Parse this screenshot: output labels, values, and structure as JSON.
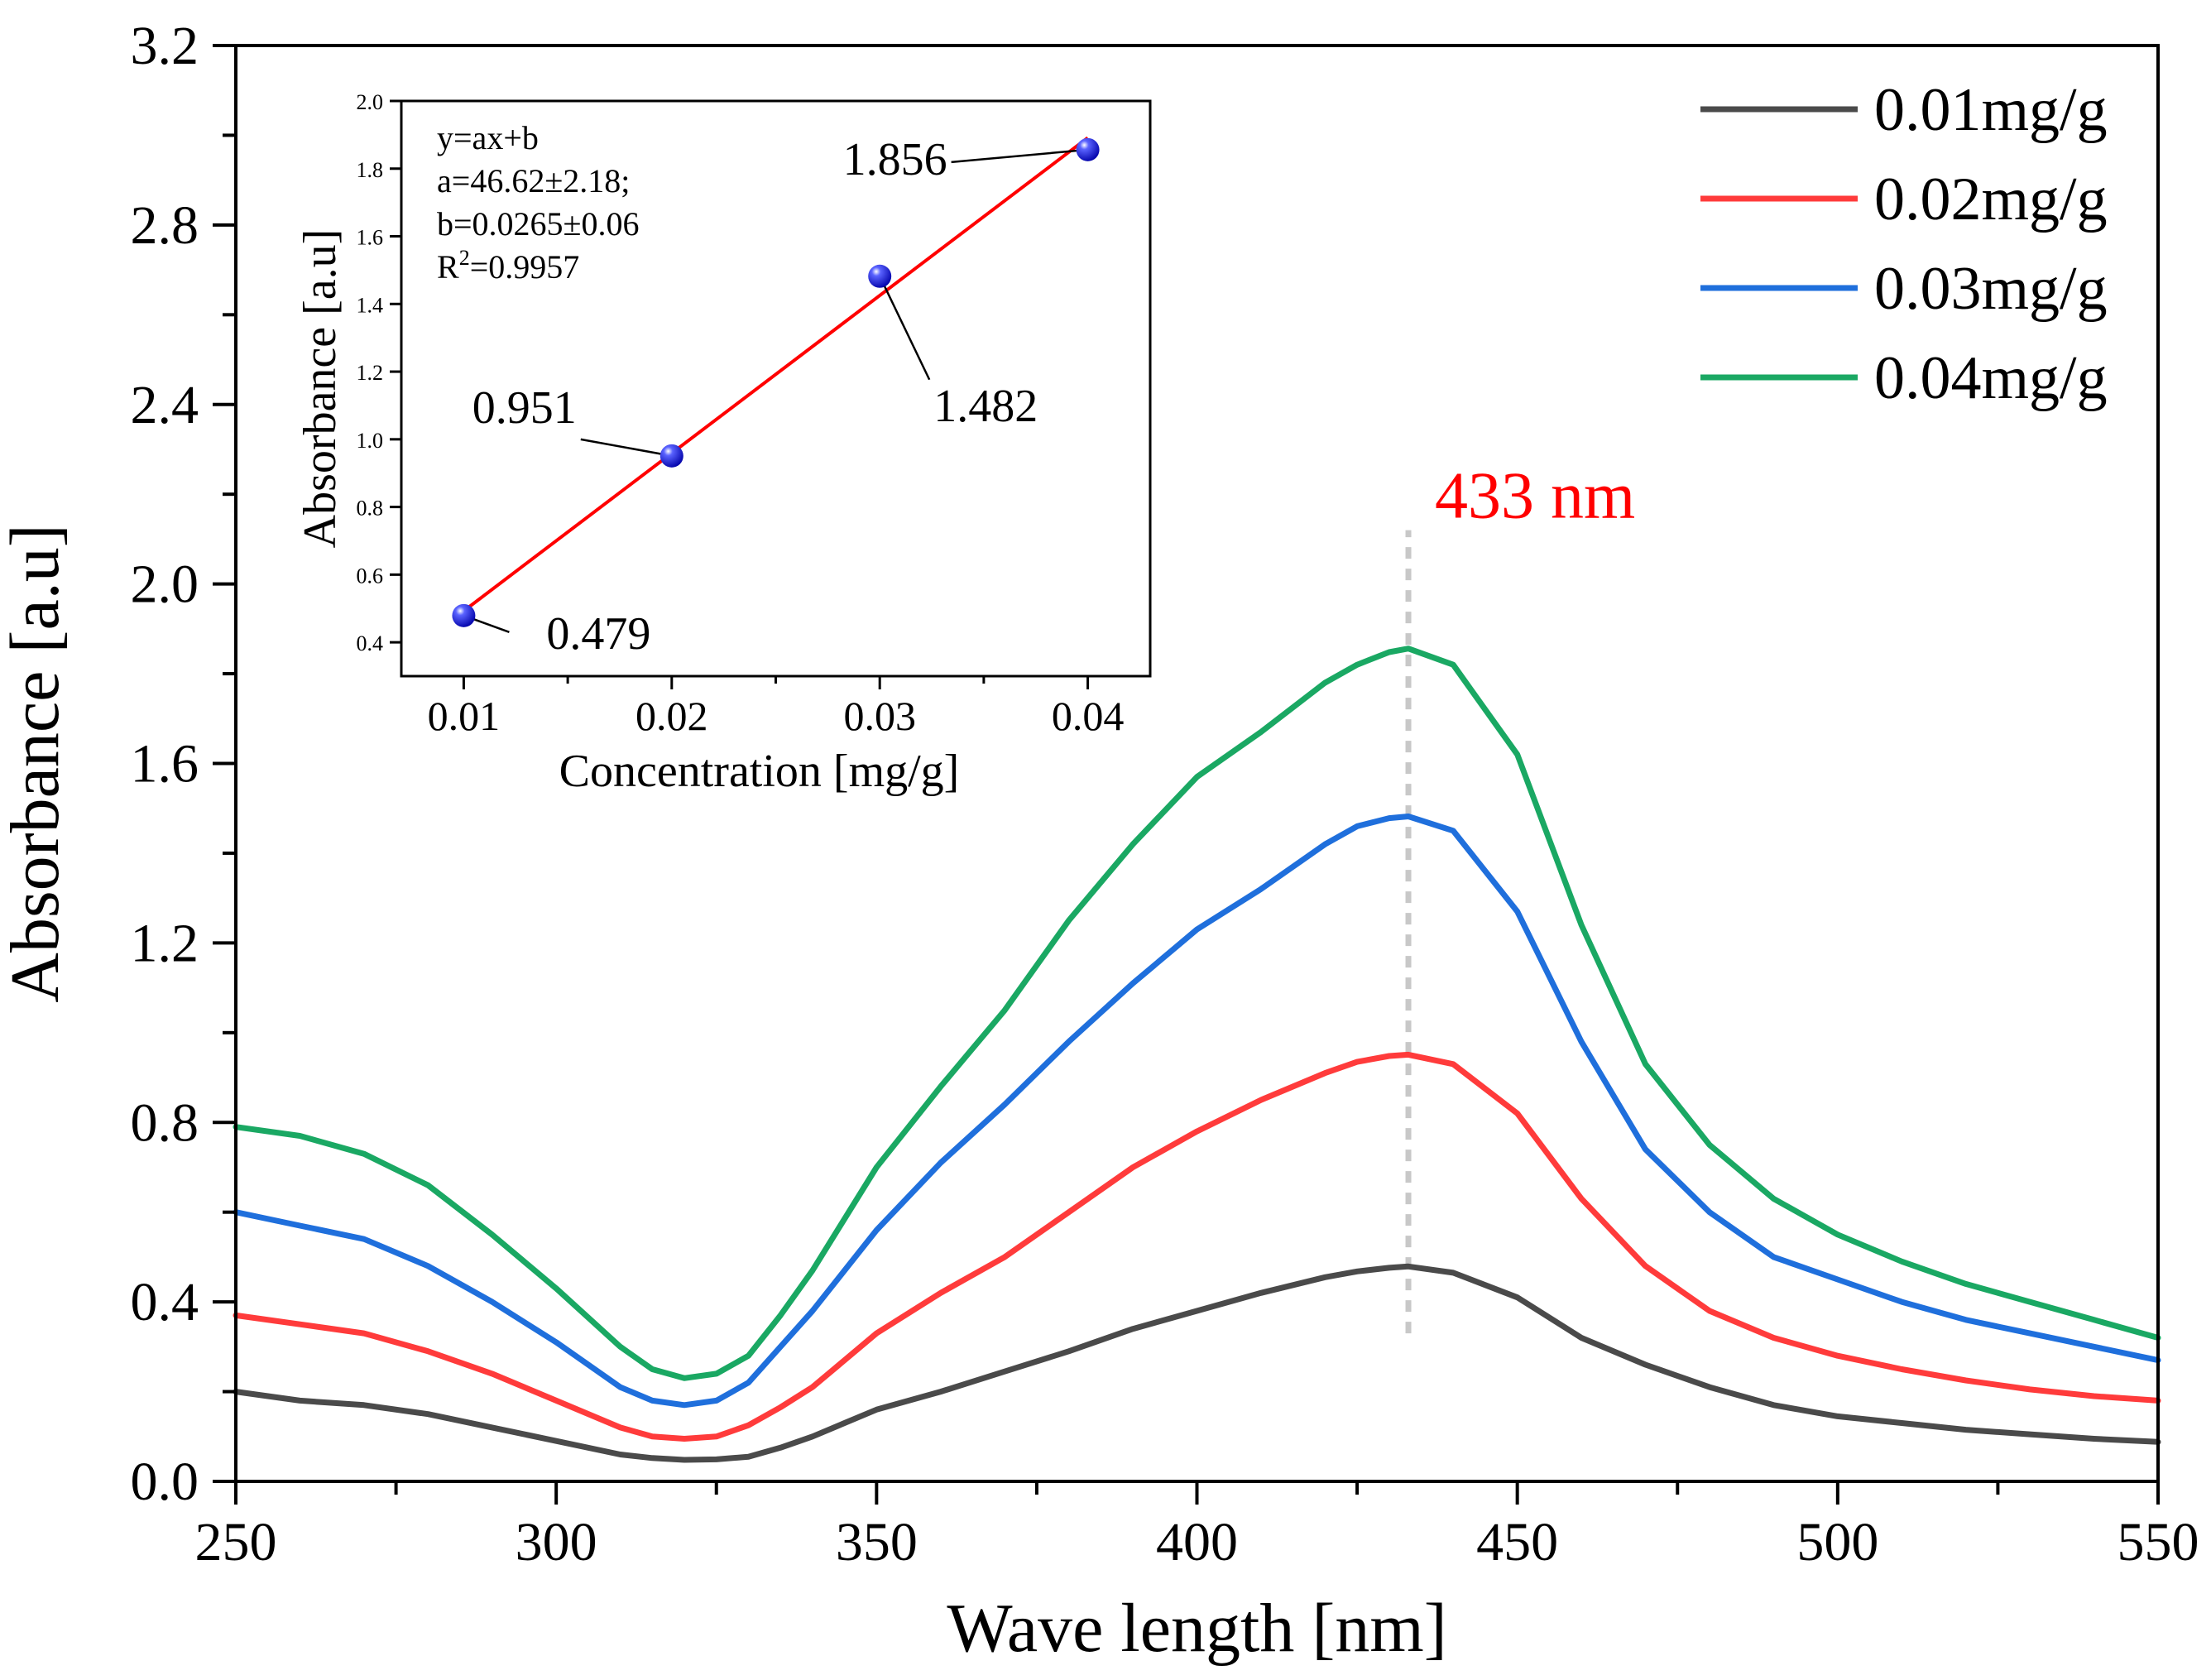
{
  "chart_data": [
    {
      "id": "main",
      "type": "line",
      "xlabel": "Wave length  [nm]",
      "ylabel": "Absorbance [a.u]",
      "xlim": [
        250,
        550
      ],
      "ylim": [
        0.0,
        3.2
      ],
      "xticks": [
        250,
        300,
        350,
        400,
        450,
        500,
        550
      ],
      "xtick_labels": [
        "250",
        "300",
        "350",
        "400",
        "450",
        "500",
        "550"
      ],
      "yticks": [
        0.0,
        0.4,
        0.8,
        1.2,
        1.6,
        2.0,
        2.4,
        2.8,
        3.2
      ],
      "ytick_labels": [
        "0.0",
        "0.4",
        "0.8",
        "1.2",
        "1.6",
        "2.0",
        "2.4",
        "2.8",
        "3.2"
      ],
      "legend_position": "top-right",
      "peak_annotation": {
        "x": 433,
        "y_from": 0.33,
        "y_to": 2.12,
        "label": "433 nm",
        "color": "#ff0000"
      },
      "x": [
        250,
        260,
        270,
        280,
        290,
        300,
        310,
        315,
        320,
        325,
        330,
        335,
        340,
        350,
        360,
        370,
        380,
        390,
        400,
        410,
        420,
        425,
        430,
        433,
        440,
        450,
        460,
        470,
        480,
        490,
        500,
        510,
        520,
        530,
        540,
        550
      ],
      "series": [
        {
          "name": "0.01mg/g",
          "color": "#4a4a4a",
          "values": [
            0.2,
            0.18,
            0.17,
            0.15,
            0.12,
            0.09,
            0.06,
            0.052,
            0.048,
            0.049,
            0.055,
            0.075,
            0.1,
            0.16,
            0.2,
            0.245,
            0.29,
            0.34,
            0.38,
            0.42,
            0.455,
            0.468,
            0.476,
            0.479,
            0.465,
            0.41,
            0.32,
            0.26,
            0.21,
            0.17,
            0.145,
            0.13,
            0.115,
            0.105,
            0.095,
            0.088
          ]
        },
        {
          "name": "0.02mg/g",
          "color": "#ff3b3b",
          "values": [
            0.37,
            0.35,
            0.33,
            0.29,
            0.24,
            0.18,
            0.12,
            0.1,
            0.095,
            0.1,
            0.125,
            0.165,
            0.21,
            0.33,
            0.42,
            0.5,
            0.6,
            0.7,
            0.78,
            0.85,
            0.91,
            0.935,
            0.948,
            0.951,
            0.93,
            0.82,
            0.63,
            0.48,
            0.38,
            0.32,
            0.28,
            0.25,
            0.225,
            0.205,
            0.19,
            0.18
          ]
        },
        {
          "name": "0.03mg/g",
          "color": "#1f6fdc",
          "values": [
            0.6,
            0.57,
            0.54,
            0.48,
            0.4,
            0.31,
            0.21,
            0.18,
            0.17,
            0.18,
            0.22,
            0.3,
            0.38,
            0.56,
            0.71,
            0.84,
            0.98,
            1.11,
            1.23,
            1.32,
            1.42,
            1.46,
            1.478,
            1.482,
            1.45,
            1.27,
            0.98,
            0.74,
            0.6,
            0.5,
            0.45,
            0.4,
            0.36,
            0.33,
            0.3,
            0.27
          ]
        },
        {
          "name": "0.04mg/g",
          "color": "#1aa863",
          "values": [
            0.79,
            0.77,
            0.73,
            0.66,
            0.55,
            0.43,
            0.3,
            0.25,
            0.23,
            0.24,
            0.28,
            0.37,
            0.47,
            0.7,
            0.88,
            1.05,
            1.25,
            1.42,
            1.57,
            1.67,
            1.78,
            1.82,
            1.848,
            1.856,
            1.82,
            1.62,
            1.24,
            0.93,
            0.75,
            0.63,
            0.55,
            0.49,
            0.44,
            0.4,
            0.36,
            0.32
          ]
        }
      ]
    },
    {
      "id": "inset",
      "type": "scatter",
      "xlabel": "Concentration  [mg/g]",
      "ylabel": "Absorbance [a.u]",
      "xlim": [
        0.007,
        0.043
      ],
      "ylim": [
        0.3,
        2.0
      ],
      "xticks": [
        0.01,
        0.02,
        0.03,
        0.04
      ],
      "xtick_labels": [
        "0.01",
        "0.02",
        "0.03",
        "0.04"
      ],
      "yticks": [
        0.4,
        0.6,
        0.8,
        1.0,
        1.2,
        1.4,
        1.6,
        1.8,
        2.0
      ],
      "ytick_labels": [
        "0.4",
        "0.6",
        "0.8",
        "1.0",
        "1.2",
        "1.4",
        "1.6",
        "1.8",
        "2.0"
      ],
      "points": [
        {
          "x": 0.01,
          "y": 0.479,
          "label": "0.479"
        },
        {
          "x": 0.02,
          "y": 0.951,
          "label": "0.951"
        },
        {
          "x": 0.03,
          "y": 1.482,
          "label": "1.482"
        },
        {
          "x": 0.04,
          "y": 1.856,
          "label": "1.856"
        }
      ],
      "fit": {
        "slope": 46.62,
        "intercept": 0.0265,
        "x_range": [
          0.01,
          0.04
        ],
        "color": "#ff0000"
      },
      "fit_text": {
        "line1": "y=ax+b",
        "line2": "a=46.62±2.18;",
        "line3": "b=0.0265±0.06",
        "line4_prefix": "R",
        "line4_sup": "2",
        "line4_suffix": "=0.9957"
      }
    }
  ]
}
